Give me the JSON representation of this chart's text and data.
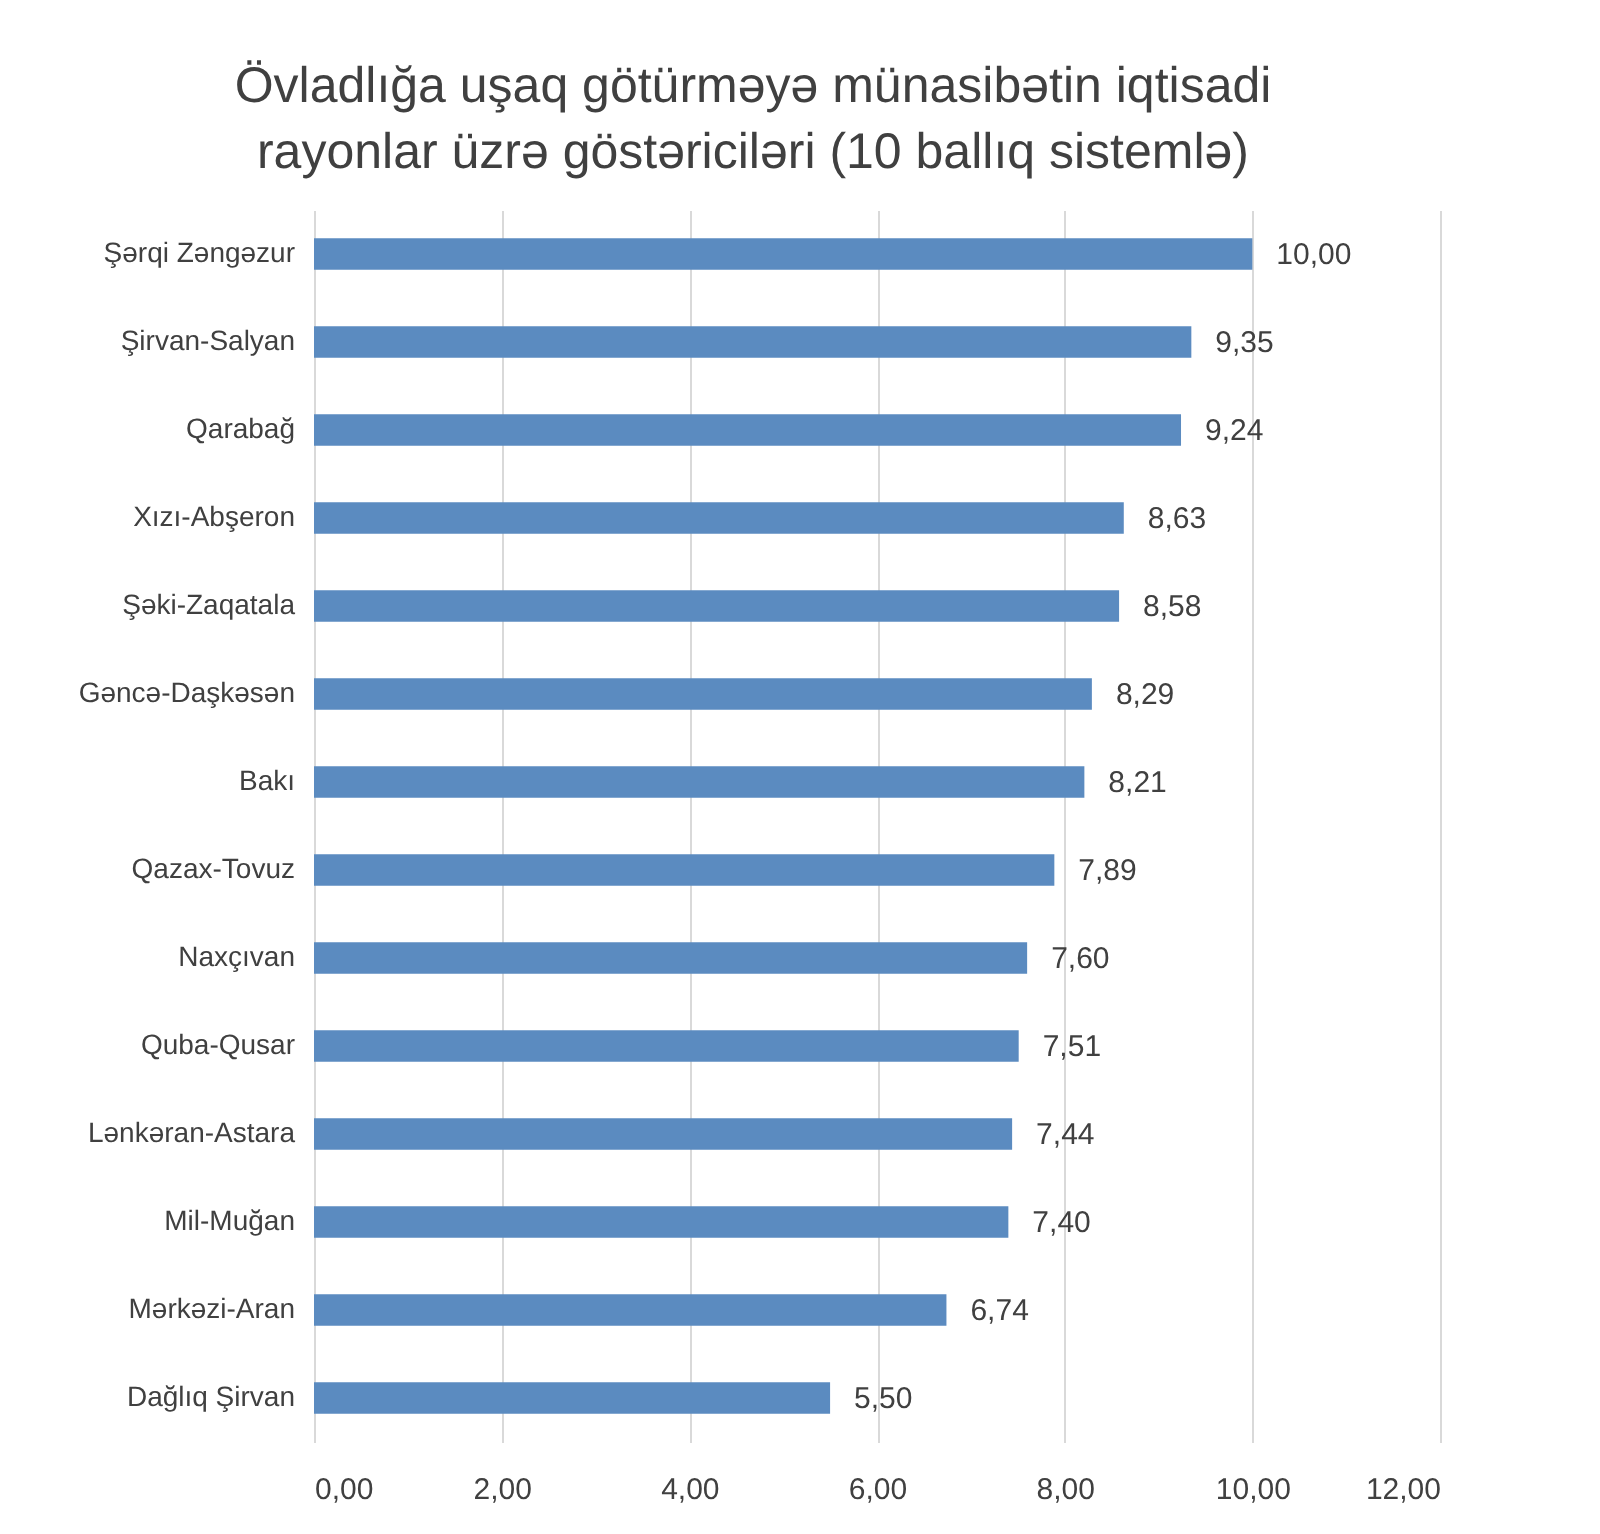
{
  "chart_data": {
    "type": "bar",
    "orientation": "horizontal",
    "title": "Övladlığa uşaq götürməyə münasibətin iqtisadi rayonlar üzrə göstəriciləri (10 ballıq sistemlə)",
    "categories": [
      "Şərqi Zəngəzur",
      "Şirvan-Salyan",
      "Qarabağ",
      "Xızı-Abşeron",
      "Şəki-Zaqatala",
      "Gəncə-Daşkəsən",
      "Bakı",
      "Qazax-Tovuz",
      "Naxçıvan",
      "Quba-Qusar",
      "Lənkəran-Astara",
      "Mil-Muğan",
      "Mərkəzi-Aran",
      "Dağlıq Şirvan"
    ],
    "values": [
      10.0,
      9.35,
      9.24,
      8.63,
      8.58,
      8.29,
      8.21,
      7.89,
      7.6,
      7.51,
      7.44,
      7.4,
      6.74,
      5.5
    ],
    "value_labels": [
      "10,00",
      "9,35",
      "9,24",
      "8,63",
      "8,58",
      "8,29",
      "8,21",
      "7,89",
      "7,60",
      "7,51",
      "7,44",
      "7,40",
      "6,74",
      "5,50"
    ],
    "color": "#5b8bc0",
    "xlim": [
      0,
      12
    ],
    "xticks": [
      {
        "value": 0,
        "label": "0,00"
      },
      {
        "value": 2,
        "label": "2,00"
      },
      {
        "value": 4,
        "label": "4,00"
      },
      {
        "value": 6,
        "label": "6,00"
      },
      {
        "value": 8,
        "label": "8,00"
      },
      {
        "value": 10,
        "label": "10,00"
      },
      {
        "value": 12,
        "label": "12,00"
      }
    ],
    "grid": "x"
  }
}
